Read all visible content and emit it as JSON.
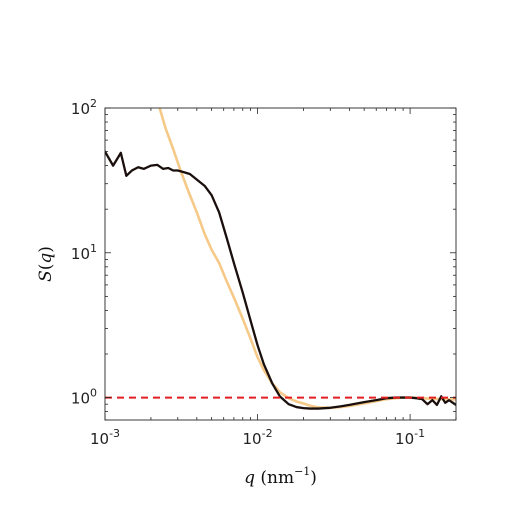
{
  "chart_data": {
    "type": "line",
    "title": "",
    "xlabel": {
      "var": "q",
      "unit": "nm",
      "unit_exp": "−1"
    },
    "ylabel": {
      "var": "S",
      "arg": "q"
    },
    "xscale": "log",
    "yscale": "log",
    "xlim": [
      0.001,
      0.2
    ],
    "ylim": [
      0.7,
      100
    ],
    "xticks": [
      {
        "value": 0.001,
        "base": "10",
        "exp": "-3"
      },
      {
        "value": 0.01,
        "base": "10",
        "exp": "-2"
      },
      {
        "value": 0.1,
        "base": "10",
        "exp": "-1"
      }
    ],
    "yticks": [
      {
        "value": 1,
        "base": "10",
        "exp": "0"
      },
      {
        "value": 10,
        "base": "10",
        "exp": "1"
      },
      {
        "value": 100,
        "base": "10",
        "exp": "2"
      }
    ],
    "grid": false,
    "legend": "none",
    "series": [
      {
        "color": "#F5C987",
        "style": "solid",
        "x": [
          0.00228,
          0.0025,
          0.0028,
          0.0031,
          0.0035,
          0.004,
          0.0045,
          0.005,
          0.0056,
          0.0063,
          0.007,
          0.008,
          0.009,
          0.01,
          0.011,
          0.0125,
          0.014,
          0.016,
          0.018,
          0.02,
          0.022,
          0.025,
          0.03,
          0.035,
          0.04,
          0.05,
          0.06,
          0.07,
          0.08,
          0.09,
          0.1,
          0.12,
          0.14,
          0.16,
          0.2
        ],
        "y": [
          100,
          72,
          52,
          38,
          27,
          19,
          13.5,
          10.5,
          8.5,
          6.3,
          4.9,
          3.5,
          2.55,
          1.9,
          1.55,
          1.25,
          1.09,
          0.99,
          0.94,
          0.91,
          0.88,
          0.855,
          0.85,
          0.86,
          0.875,
          0.91,
          0.945,
          0.975,
          0.99,
          1.0,
          1.0,
          0.99,
          0.98,
          0.975,
          0.97
        ]
      },
      {
        "color": "#1a0f0c",
        "style": "solid",
        "x": [
          0.001,
          0.00113,
          0.00127,
          0.00138,
          0.0015,
          0.00165,
          0.0018,
          0.002,
          0.0022,
          0.0024,
          0.0026,
          0.0028,
          0.003,
          0.0033,
          0.0036,
          0.004,
          0.0045,
          0.005,
          0.0056,
          0.0063,
          0.007,
          0.008,
          0.009,
          0.01,
          0.011,
          0.0125,
          0.014,
          0.016,
          0.018,
          0.02,
          0.022,
          0.025,
          0.03,
          0.035,
          0.04,
          0.05,
          0.06,
          0.07,
          0.08,
          0.09,
          0.1,
          0.11,
          0.12,
          0.13,
          0.14,
          0.15,
          0.16,
          0.17,
          0.18,
          0.2
        ],
        "y": [
          50,
          40,
          49,
          34,
          37,
          39,
          38,
          40,
          40.5,
          38,
          38.5,
          37,
          37,
          36,
          35,
          32,
          29,
          25,
          19,
          12.5,
          8.5,
          5.3,
          3.4,
          2.3,
          1.7,
          1.25,
          1.02,
          0.9,
          0.86,
          0.845,
          0.84,
          0.84,
          0.85,
          0.87,
          0.89,
          0.93,
          0.96,
          0.99,
          1.0,
          1.0,
          1.0,
          0.99,
          0.975,
          0.9,
          0.96,
          0.89,
          1.02,
          0.92,
          0.96,
          0.89
        ]
      },
      {
        "color": "#e02020",
        "style": "dashed",
        "x": [
          0.001,
          0.2
        ],
        "y": [
          1.0,
          1.0
        ]
      }
    ]
  }
}
